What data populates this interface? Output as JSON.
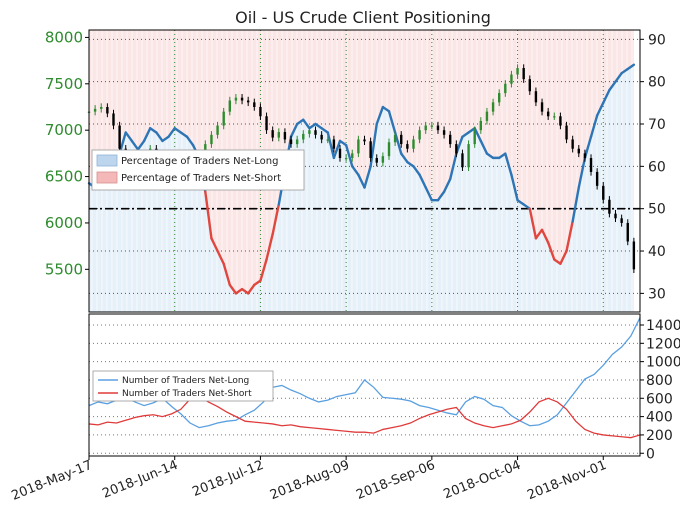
{
  "chart_data": [
    {
      "type": "line",
      "title": "Oil - US Crude Client Positioning",
      "x_tick_labels": [
        "2018-May-17",
        "2018-Jun-14",
        "2018-Jul-12",
        "2018-Aug-09",
        "2018-Sep-06",
        "2018-Oct-04",
        "2018-Nov-01"
      ],
      "left_axis": {
        "ticks": [
          5500,
          6000,
          6500,
          7000,
          7500,
          8000
        ],
        "ylim": [
          5040,
          8080
        ],
        "color": "#2e8b2e"
      },
      "right_axis": {
        "ticks": [
          30,
          40,
          50,
          60,
          70,
          80,
          90
        ],
        "ylim": [
          25.6,
          92.2
        ]
      },
      "legend": {
        "position": "middle-left",
        "entries": [
          {
            "label": "Percentage of Traders Net-Long",
            "color": "#bdd6ee"
          },
          {
            "label": "Percentage of Traders Net-Short",
            "color": "#f5b8b8"
          }
        ]
      },
      "reference_line": {
        "value": 50,
        "style": "dash-dot",
        "color": "#000000"
      },
      "price_series": {
        "description": "candlesticks",
        "up_color": "#2e8b2e",
        "down_color": "#000000",
        "x": [
          0,
          2,
          4,
          6,
          8,
          10,
          12,
          14,
          16,
          18,
          20,
          22,
          24,
          26,
          28,
          30,
          32,
          34,
          36,
          38,
          40,
          42,
          44,
          46,
          48,
          50,
          52,
          54,
          56,
          58,
          60,
          62,
          64,
          66,
          68,
          70,
          72,
          74,
          76,
          78,
          80,
          82,
          84,
          86,
          88,
          90,
          92,
          94,
          96,
          98,
          100,
          102,
          104,
          106,
          108,
          110,
          112,
          114,
          116,
          118,
          120,
          122,
          124,
          126,
          128,
          130,
          132,
          134,
          136,
          138,
          140,
          142,
          144,
          146,
          148,
          150,
          152,
          154,
          156,
          158,
          160,
          162,
          164,
          166,
          168,
          170,
          172,
          174,
          176,
          178
        ],
        "close": [
          7200,
          7230,
          7250,
          7180,
          7050,
          6800,
          6550,
          6500,
          6580,
          6700,
          6800,
          6650,
          6500,
          6580,
          6700,
          6620,
          6480,
          6550,
          6700,
          6850,
          6950,
          7050,
          7200,
          7320,
          7350,
          7320,
          7300,
          7250,
          7150,
          7000,
          6920,
          6980,
          6900,
          6850,
          6900,
          6960,
          7000,
          6950,
          6900,
          6900,
          6800,
          6700,
          6700,
          6750,
          6900,
          6880,
          6700,
          6650,
          6720,
          6870,
          6950,
          6850,
          6800,
          6900,
          7000,
          7050,
          7050,
          7000,
          6950,
          6850,
          6750,
          6600,
          6850,
          7000,
          7100,
          7200,
          7300,
          7400,
          7500,
          7600,
          7670,
          7550,
          7420,
          7300,
          7200,
          7150,
          7150,
          7050,
          6900,
          6800,
          6750,
          6700,
          6550,
          6400,
          6250,
          6100,
          6050,
          6000,
          5800,
          5500
        ]
      },
      "net_long_pct_series": {
        "color": "#2e75b6",
        "x": [
          0,
          2,
          4,
          6,
          8,
          10,
          12,
          14,
          16,
          18,
          20,
          22,
          24,
          26,
          28,
          30,
          32,
          34,
          36,
          38,
          40,
          42,
          44,
          46,
          48,
          50,
          52,
          54,
          56,
          58,
          60,
          62,
          64,
          66,
          68,
          70,
          72,
          74,
          76,
          78,
          80,
          82,
          84,
          86,
          88,
          90,
          92,
          94,
          96,
          98,
          100,
          102,
          104,
          106,
          108,
          110,
          112,
          114,
          116,
          118,
          120,
          122,
          124,
          126,
          128,
          130,
          132,
          134,
          136,
          138,
          140,
          142,
          144,
          146,
          148,
          150,
          152,
          154,
          156,
          158,
          160,
          162,
          164,
          166,
          168,
          170,
          172,
          174,
          176,
          178
        ],
        "values": [
          56,
          55,
          56,
          55,
          57,
          63,
          68,
          66,
          64,
          66,
          69,
          68,
          66,
          67,
          69,
          68,
          67,
          65,
          62,
          54,
          43,
          40,
          37,
          32,
          30,
          31,
          30,
          32,
          33,
          38,
          44,
          51,
          59,
          67,
          70,
          71,
          69,
          70,
          69,
          68,
          62,
          66,
          65,
          60,
          58,
          55,
          60,
          70,
          74,
          73,
          68,
          63,
          61,
          60,
          58,
          55,
          52,
          52,
          54,
          57,
          63,
          67,
          68,
          69,
          66,
          63,
          62,
          62,
          63,
          58,
          52,
          51,
          50,
          43,
          45,
          42,
          38,
          37,
          40,
          47,
          55,
          62,
          67,
          72,
          75,
          78,
          80,
          82,
          83,
          84
        ]
      },
      "percent_long_axis_mapping_note": ""
    },
    {
      "type": "line",
      "x_tick_labels": [
        "2018-May-17",
        "2018-Jun-14",
        "2018-Jul-12",
        "2018-Aug-09",
        "2018-Sep-06",
        "2018-Oct-04",
        "2018-Nov-01"
      ],
      "right_axis": {
        "ticks": [
          0,
          200,
          400,
          600,
          800,
          1000,
          1200,
          1400
        ],
        "ylim": [
          -30,
          1520
        ]
      },
      "legend": {
        "position": "middle-left",
        "entries": [
          {
            "label": "Number of Traders Net-Long",
            "color": "#5aa0e0"
          },
          {
            "label": "Number of Traders Net-Short",
            "color": "#e03b3b"
          }
        ]
      },
      "series": [
        {
          "name": "Number of Traders Net-Long",
          "color": "#5aa0e0",
          "x": [
            0,
            3,
            6,
            9,
            12,
            15,
            18,
            21,
            24,
            27,
            30,
            33,
            36,
            39,
            42,
            45,
            48,
            51,
            54,
            57,
            60,
            63,
            66,
            69,
            72,
            75,
            78,
            81,
            84,
            87,
            90,
            93,
            96,
            99,
            102,
            105,
            108,
            111,
            114,
            117,
            120,
            123,
            126,
            129,
            132,
            135,
            138,
            141,
            144,
            147,
            150,
            153,
            156,
            159,
            162,
            165,
            168,
            171,
            174,
            177,
            180
          ],
          "values": [
            520,
            560,
            540,
            580,
            610,
            560,
            520,
            550,
            600,
            510,
            430,
            330,
            280,
            300,
            330,
            350,
            360,
            420,
            470,
            560,
            720,
            740,
            690,
            650,
            600,
            560,
            580,
            620,
            640,
            660,
            800,
            720,
            610,
            600,
            590,
            570,
            520,
            500,
            470,
            440,
            420,
            560,
            620,
            590,
            520,
            500,
            410,
            350,
            300,
            310,
            350,
            420,
            550,
            680,
            810,
            860,
            960,
            1080,
            1160,
            1280,
            1480
          ]
        },
        {
          "name": "Number of Traders Net-Short",
          "color": "#e03b3b",
          "x": [
            0,
            3,
            6,
            9,
            12,
            15,
            18,
            21,
            24,
            27,
            30,
            33,
            36,
            39,
            42,
            45,
            48,
            51,
            54,
            57,
            60,
            63,
            66,
            69,
            72,
            75,
            78,
            81,
            84,
            87,
            90,
            93,
            96,
            99,
            102,
            105,
            108,
            111,
            114,
            117,
            120,
            123,
            126,
            129,
            132,
            135,
            138,
            141,
            144,
            147,
            150,
            153,
            156,
            159,
            162,
            165,
            168,
            171,
            174,
            177,
            180
          ],
          "values": [
            320,
            310,
            340,
            330,
            360,
            390,
            410,
            420,
            400,
            430,
            480,
            590,
            620,
            560,
            510,
            450,
            400,
            350,
            340,
            330,
            320,
            300,
            310,
            290,
            280,
            270,
            260,
            250,
            240,
            230,
            230,
            220,
            260,
            280,
            300,
            330,
            380,
            420,
            450,
            480,
            500,
            380,
            330,
            300,
            280,
            300,
            320,
            360,
            450,
            560,
            600,
            560,
            480,
            350,
            260,
            220,
            200,
            190,
            180,
            170,
            200
          ]
        }
      ]
    }
  ]
}
